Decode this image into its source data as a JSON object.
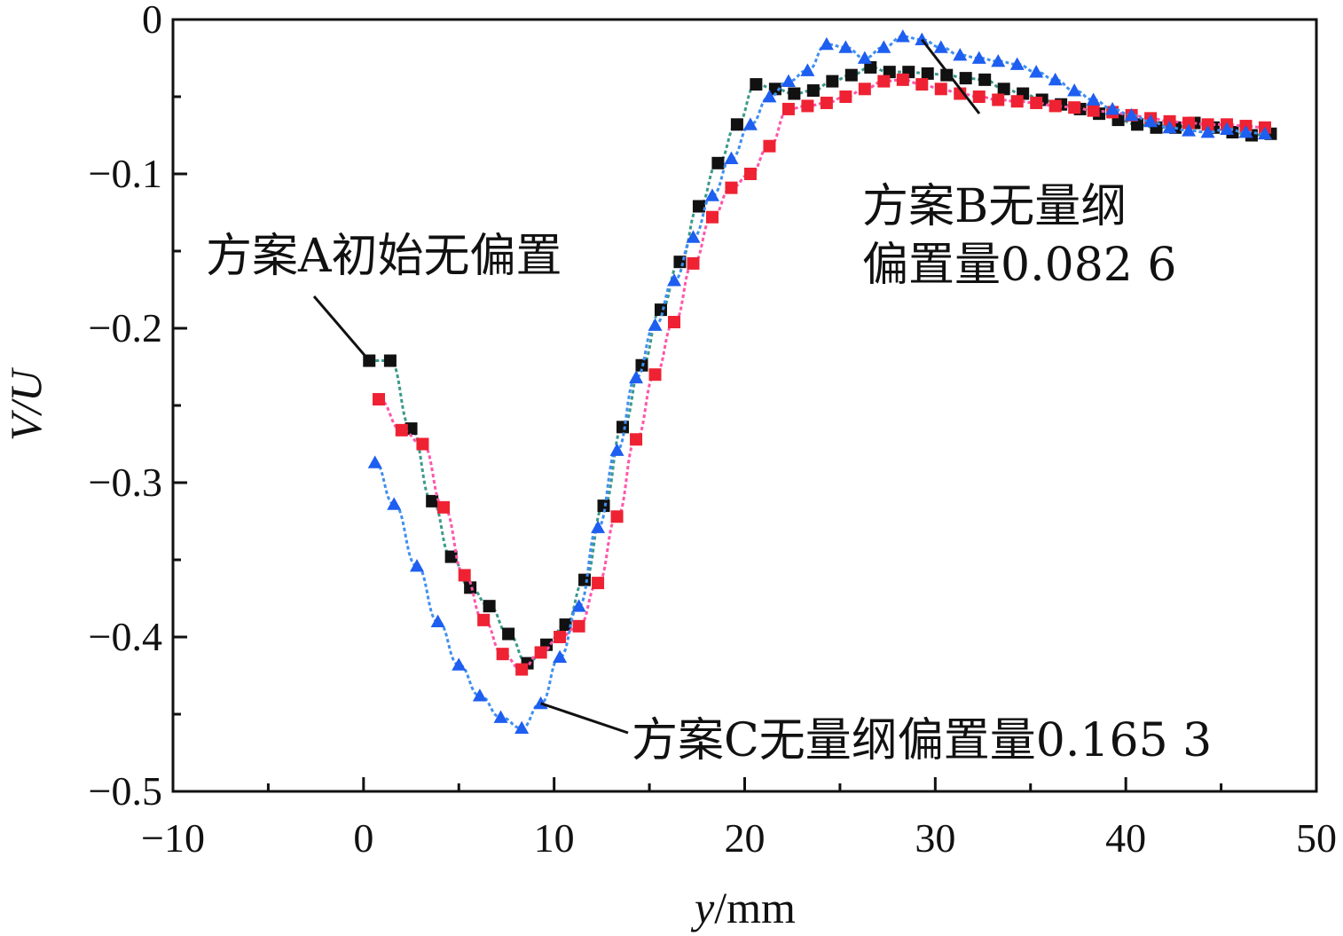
{
  "chart_data": {
    "type": "line",
    "title": "",
    "xlabel_italic": "y",
    "xlabel_unit": "/mm",
    "ylabel": "V/U",
    "xlim": [
      -10,
      50
    ],
    "ylim": [
      -0.5,
      0
    ],
    "xticks": [
      -10,
      0,
      10,
      20,
      30,
      40,
      50
    ],
    "xtick_labels": [
      "−10",
      "0",
      "10",
      "20",
      "30",
      "40",
      "50"
    ],
    "yticks": [
      0,
      -0.1,
      -0.2,
      -0.3,
      -0.4,
      -0.5
    ],
    "ytick_labels": [
      "0",
      "−0.1",
      "−0.2",
      "−0.3",
      "−0.4",
      "−0.5"
    ],
    "series": [
      {
        "name": "方案A初始无偏置",
        "color": "#111111",
        "line_color": "#3a9a8a",
        "marker": "square",
        "x": [
          0.3,
          1.4,
          2.5,
          3.6,
          4.6,
          5.6,
          6.6,
          7.6,
          8.6,
          9.6,
          10.6,
          11.6,
          12.6,
          13.6,
          14.6,
          15.6,
          16.6,
          17.6,
          18.6,
          19.6,
          20.6,
          21.6,
          22.6,
          23.6,
          24.6,
          25.6,
          26.6,
          27.6,
          28.6,
          29.6,
          30.6,
          31.6,
          32.6,
          33.6,
          34.6,
          35.6,
          36.6,
          37.6,
          38.6,
          39.6,
          40.6,
          41.6,
          42.6,
          43.6,
          44.6,
          45.6,
          46.6,
          47.6
        ],
        "y": [
          -0.221,
          -0.221,
          -0.265,
          -0.312,
          -0.348,
          -0.368,
          -0.38,
          -0.398,
          -0.417,
          -0.405,
          -0.392,
          -0.363,
          -0.315,
          -0.264,
          -0.224,
          -0.188,
          -0.157,
          -0.121,
          -0.093,
          -0.068,
          -0.042,
          -0.045,
          -0.048,
          -0.046,
          -0.04,
          -0.036,
          -0.031,
          -0.034,
          -0.034,
          -0.035,
          -0.036,
          -0.038,
          -0.039,
          -0.045,
          -0.048,
          -0.052,
          -0.055,
          -0.058,
          -0.061,
          -0.065,
          -0.068,
          -0.07,
          -0.07,
          -0.067,
          -0.07,
          -0.073,
          -0.075,
          -0.074
        ]
      },
      {
        "name": "方案B无量纲偏置量0.082 6",
        "color": "#ee2233",
        "line_color": "#ff55aa",
        "marker": "square",
        "x": [
          0.8,
          2.0,
          3.1,
          4.2,
          5.3,
          6.3,
          7.3,
          8.3,
          9.3,
          10.3,
          11.3,
          12.3,
          13.3,
          14.3,
          15.3,
          16.3,
          17.3,
          18.3,
          19.3,
          20.3,
          21.3,
          22.3,
          23.3,
          24.3,
          25.3,
          26.3,
          27.3,
          28.3,
          29.3,
          30.3,
          31.3,
          32.3,
          33.3,
          34.3,
          35.3,
          36.3,
          37.3,
          38.3,
          39.3,
          40.3,
          41.3,
          42.3,
          43.3,
          44.3,
          45.3,
          46.3,
          47.3
        ],
        "y": [
          -0.246,
          -0.266,
          -0.275,
          -0.316,
          -0.36,
          -0.389,
          -0.411,
          -0.421,
          -0.41,
          -0.4,
          -0.393,
          -0.365,
          -0.322,
          -0.272,
          -0.23,
          -0.196,
          -0.158,
          -0.128,
          -0.109,
          -0.1,
          -0.082,
          -0.058,
          -0.056,
          -0.054,
          -0.05,
          -0.045,
          -0.04,
          -0.039,
          -0.042,
          -0.045,
          -0.048,
          -0.05,
          -0.052,
          -0.053,
          -0.054,
          -0.056,
          -0.057,
          -0.059,
          -0.06,
          -0.062,
          -0.064,
          -0.066,
          -0.067,
          -0.068,
          -0.068,
          -0.069,
          -0.07
        ]
      },
      {
        "name": "方案C无量纲偏置量0.165 3",
        "color": "#1e5ef0",
        "line_color": "#3f8ff0",
        "marker": "triangle",
        "x": [
          0.6,
          1.6,
          2.8,
          3.9,
          5.0,
          6.1,
          7.2,
          8.3,
          9.3,
          10.3,
          11.3,
          12.3,
          13.3,
          14.3,
          15.3,
          16.3,
          17.3,
          18.3,
          19.3,
          20.3,
          21.3,
          22.3,
          23.3,
          24.3,
          25.3,
          26.3,
          27.3,
          28.3,
          29.3,
          30.3,
          31.3,
          32.3,
          33.3,
          34.3,
          35.3,
          36.3,
          37.3,
          38.3,
          39.3,
          40.3,
          41.3,
          42.3,
          43.3,
          44.3,
          45.3,
          46.3,
          47.3
        ],
        "y": [
          -0.287,
          -0.314,
          -0.354,
          -0.39,
          -0.418,
          -0.438,
          -0.452,
          -0.459,
          -0.443,
          -0.413,
          -0.38,
          -0.329,
          -0.279,
          -0.232,
          -0.198,
          -0.169,
          -0.141,
          -0.114,
          -0.09,
          -0.068,
          -0.05,
          -0.04,
          -0.033,
          -0.016,
          -0.018,
          -0.025,
          -0.018,
          -0.011,
          -0.013,
          -0.018,
          -0.023,
          -0.025,
          -0.027,
          -0.029,
          -0.034,
          -0.039,
          -0.046,
          -0.052,
          -0.058,
          -0.062,
          -0.066,
          -0.07,
          -0.072,
          -0.073,
          -0.071,
          -0.073,
          -0.074
        ]
      }
    ],
    "annotations": [
      {
        "text": "方案A初始无偏置",
        "target_series": 0,
        "target_index": 0
      },
      {
        "text": "方案B无量纲",
        "text2": "偏置量0.082 6",
        "target_series": 2,
        "target_index": 28
      },
      {
        "text": "方案C无量纲偏置量0.165 3",
        "target_series": 2,
        "target_index": 8
      }
    ]
  }
}
